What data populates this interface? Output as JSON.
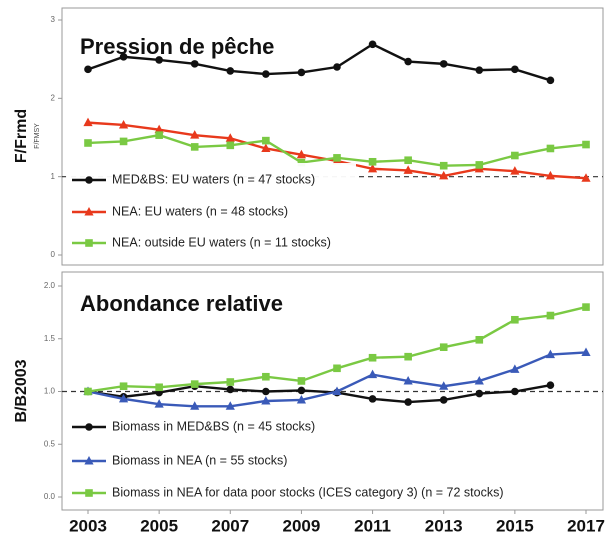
{
  "chart_data": [
    {
      "type": "line",
      "title": "Pression de pêche",
      "ylabel": "F/Frmd",
      "ylabel_sub": "F/FMSY",
      "x": [
        2003,
        2004,
        2005,
        2006,
        2007,
        2008,
        2009,
        2010,
        2011,
        2012,
        2013,
        2014,
        2015,
        2016,
        2017
      ],
      "xlim": [
        2003,
        2017
      ],
      "ylim": [
        0,
        3
      ],
      "yticks": [
        0,
        1,
        2,
        3
      ],
      "hline": 1,
      "series": [
        {
          "name": "MED&BS: EU waters (n = 47 stocks)",
          "color": "#111111",
          "marker": "circle",
          "values": [
            2.37,
            2.53,
            2.49,
            2.44,
            2.35,
            2.31,
            2.33,
            2.4,
            2.69,
            2.47,
            2.44,
            2.36,
            2.37,
            2.23,
            null
          ]
        },
        {
          "name": "NEA: EU waters (n = 48 stocks)",
          "color": "#e8391c",
          "marker": "triangle",
          "values": [
            1.69,
            1.66,
            1.6,
            1.53,
            1.49,
            1.36,
            1.28,
            1.2,
            1.1,
            1.08,
            1.01,
            1.1,
            1.07,
            1.01,
            0.98
          ]
        },
        {
          "name": "NEA: outside EU waters (n = 11 stocks)",
          "color": "#7ac943",
          "marker": "square",
          "values": [
            1.43,
            1.45,
            1.53,
            1.38,
            1.4,
            1.46,
            1.18,
            1.24,
            1.19,
            1.21,
            1.14,
            1.15,
            1.27,
            1.36,
            1.41
          ]
        }
      ]
    },
    {
      "type": "line",
      "title": "Abondance relative",
      "ylabel": "B/B2003",
      "x": [
        2003,
        2004,
        2005,
        2006,
        2007,
        2008,
        2009,
        2010,
        2011,
        2012,
        2013,
        2014,
        2015,
        2016,
        2017
      ],
      "xlim": [
        2003,
        2017
      ],
      "xticks": [
        2003,
        2005,
        2007,
        2009,
        2011,
        2013,
        2015,
        2017
      ],
      "ylim": [
        0,
        2
      ],
      "yticks": [
        {
          "value": 0,
          "label": "0.0"
        },
        {
          "value": 0.5,
          "label": "0.5"
        },
        {
          "value": 1,
          "label": "1.0"
        },
        {
          "value": 1.5,
          "label": "1.5"
        },
        {
          "value": 2,
          "label": "2.0"
        }
      ],
      "hline": 1,
      "series": [
        {
          "name": "Biomass in MED&BS (n = 45 stocks)",
          "color": "#111111",
          "marker": "circle",
          "values": [
            1.0,
            0.95,
            0.99,
            1.05,
            1.02,
            1.0,
            1.01,
            0.99,
            0.93,
            0.9,
            0.92,
            0.98,
            1.0,
            1.06,
            null
          ]
        },
        {
          "name": "Biomass in NEA (n = 55 stocks)",
          "color": "#3a5ab8",
          "marker": "triangle",
          "values": [
            1.0,
            0.93,
            0.88,
            0.86,
            0.86,
            0.91,
            0.92,
            1.0,
            1.16,
            1.1,
            1.05,
            1.1,
            1.21,
            1.35,
            1.37
          ]
        },
        {
          "name": "Biomass in NEA for data poor stocks (ICES category 3) (n = 72 stocks)",
          "color": "#7ac943",
          "marker": "square",
          "values": [
            1.0,
            1.05,
            1.04,
            1.07,
            1.09,
            1.14,
            1.1,
            1.22,
            1.32,
            1.33,
            1.42,
            1.49,
            1.68,
            1.72,
            1.8
          ]
        }
      ]
    }
  ]
}
